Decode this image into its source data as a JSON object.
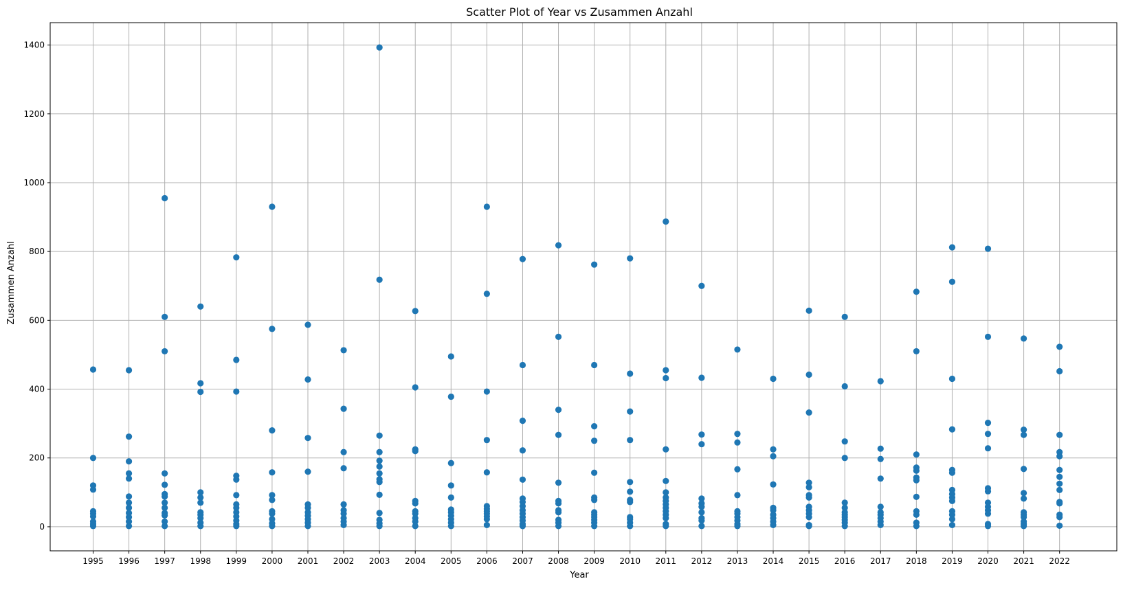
{
  "chart_data": {
    "type": "scatter",
    "title": "Scatter Plot of Year vs Zusammen Anzahl",
    "xlabel": "Year",
    "ylabel": "Zusammen Anzahl",
    "xlim": [
      1993.8,
      2023.6
    ],
    "ylim": [
      -70,
      1465
    ],
    "grid": true,
    "point_color": "#1f77b4",
    "x_ticks": [
      1995,
      1996,
      1997,
      1998,
      1999,
      2000,
      2001,
      2002,
      2003,
      2004,
      2005,
      2006,
      2007,
      2008,
      2009,
      2010,
      2011,
      2012,
      2013,
      2014,
      2015,
      2016,
      2017,
      2018,
      2019,
      2020,
      2021,
      2022
    ],
    "y_ticks": [
      0,
      200,
      400,
      600,
      800,
      1000,
      1200,
      1400
    ],
    "points": [
      {
        "x": 1995,
        "y": 457
      },
      {
        "x": 1995,
        "y": 200
      },
      {
        "x": 1995,
        "y": 120
      },
      {
        "x": 1995,
        "y": 108
      },
      {
        "x": 1995,
        "y": 45
      },
      {
        "x": 1995,
        "y": 38
      },
      {
        "x": 1995,
        "y": 30
      },
      {
        "x": 1995,
        "y": 15
      },
      {
        "x": 1995,
        "y": 8
      },
      {
        "x": 1995,
        "y": 2
      },
      {
        "x": 1996,
        "y": 455
      },
      {
        "x": 1996,
        "y": 262
      },
      {
        "x": 1996,
        "y": 190
      },
      {
        "x": 1996,
        "y": 155
      },
      {
        "x": 1996,
        "y": 140
      },
      {
        "x": 1996,
        "y": 88
      },
      {
        "x": 1996,
        "y": 70
      },
      {
        "x": 1996,
        "y": 55
      },
      {
        "x": 1996,
        "y": 40
      },
      {
        "x": 1996,
        "y": 28
      },
      {
        "x": 1996,
        "y": 15
      },
      {
        "x": 1996,
        "y": 2
      },
      {
        "x": 1997,
        "y": 955
      },
      {
        "x": 1997,
        "y": 610
      },
      {
        "x": 1997,
        "y": 510
      },
      {
        "x": 1997,
        "y": 155
      },
      {
        "x": 1997,
        "y": 122
      },
      {
        "x": 1997,
        "y": 95
      },
      {
        "x": 1997,
        "y": 88
      },
      {
        "x": 1997,
        "y": 70
      },
      {
        "x": 1997,
        "y": 55
      },
      {
        "x": 1997,
        "y": 40
      },
      {
        "x": 1997,
        "y": 33
      },
      {
        "x": 1997,
        "y": 15
      },
      {
        "x": 1997,
        "y": 2
      },
      {
        "x": 1998,
        "y": 640
      },
      {
        "x": 1998,
        "y": 417
      },
      {
        "x": 1998,
        "y": 392
      },
      {
        "x": 1998,
        "y": 100
      },
      {
        "x": 1998,
        "y": 85
      },
      {
        "x": 1998,
        "y": 70
      },
      {
        "x": 1998,
        "y": 42
      },
      {
        "x": 1998,
        "y": 35
      },
      {
        "x": 1998,
        "y": 25
      },
      {
        "x": 1998,
        "y": 12
      },
      {
        "x": 1998,
        "y": 2
      },
      {
        "x": 1999,
        "y": 783
      },
      {
        "x": 1999,
        "y": 485
      },
      {
        "x": 1999,
        "y": 393
      },
      {
        "x": 1999,
        "y": 148
      },
      {
        "x": 1999,
        "y": 137
      },
      {
        "x": 1999,
        "y": 92
      },
      {
        "x": 1999,
        "y": 65
      },
      {
        "x": 1999,
        "y": 55
      },
      {
        "x": 1999,
        "y": 42
      },
      {
        "x": 1999,
        "y": 30
      },
      {
        "x": 1999,
        "y": 18
      },
      {
        "x": 1999,
        "y": 8
      },
      {
        "x": 1999,
        "y": 2
      },
      {
        "x": 2000,
        "y": 930
      },
      {
        "x": 2000,
        "y": 575
      },
      {
        "x": 2000,
        "y": 280
      },
      {
        "x": 2000,
        "y": 158
      },
      {
        "x": 2000,
        "y": 92
      },
      {
        "x": 2000,
        "y": 78
      },
      {
        "x": 2000,
        "y": 45
      },
      {
        "x": 2000,
        "y": 38
      },
      {
        "x": 2000,
        "y": 22
      },
      {
        "x": 2000,
        "y": 10
      },
      {
        "x": 2000,
        "y": 2
      },
      {
        "x": 2001,
        "y": 587
      },
      {
        "x": 2001,
        "y": 428
      },
      {
        "x": 2001,
        "y": 258
      },
      {
        "x": 2001,
        "y": 160
      },
      {
        "x": 2001,
        "y": 65
      },
      {
        "x": 2001,
        "y": 55
      },
      {
        "x": 2001,
        "y": 42
      },
      {
        "x": 2001,
        "y": 32
      },
      {
        "x": 2001,
        "y": 22
      },
      {
        "x": 2001,
        "y": 12
      },
      {
        "x": 2001,
        "y": 2
      },
      {
        "x": 2002,
        "y": 513
      },
      {
        "x": 2002,
        "y": 343
      },
      {
        "x": 2002,
        "y": 217
      },
      {
        "x": 2002,
        "y": 170
      },
      {
        "x": 2002,
        "y": 65
      },
      {
        "x": 2002,
        "y": 48
      },
      {
        "x": 2002,
        "y": 38
      },
      {
        "x": 2002,
        "y": 25
      },
      {
        "x": 2002,
        "y": 15
      },
      {
        "x": 2002,
        "y": 5
      },
      {
        "x": 2003,
        "y": 1393
      },
      {
        "x": 2003,
        "y": 718
      },
      {
        "x": 2003,
        "y": 265
      },
      {
        "x": 2003,
        "y": 217
      },
      {
        "x": 2003,
        "y": 192
      },
      {
        "x": 2003,
        "y": 175
      },
      {
        "x": 2003,
        "y": 155
      },
      {
        "x": 2003,
        "y": 138
      },
      {
        "x": 2003,
        "y": 130
      },
      {
        "x": 2003,
        "y": 93
      },
      {
        "x": 2003,
        "y": 40
      },
      {
        "x": 2003,
        "y": 20
      },
      {
        "x": 2003,
        "y": 10
      },
      {
        "x": 2003,
        "y": 2
      },
      {
        "x": 2004,
        "y": 627
      },
      {
        "x": 2004,
        "y": 405
      },
      {
        "x": 2004,
        "y": 225
      },
      {
        "x": 2004,
        "y": 220
      },
      {
        "x": 2004,
        "y": 75
      },
      {
        "x": 2004,
        "y": 68
      },
      {
        "x": 2004,
        "y": 45
      },
      {
        "x": 2004,
        "y": 38
      },
      {
        "x": 2004,
        "y": 25
      },
      {
        "x": 2004,
        "y": 15
      },
      {
        "x": 2004,
        "y": 2
      },
      {
        "x": 2005,
        "y": 495
      },
      {
        "x": 2005,
        "y": 378
      },
      {
        "x": 2005,
        "y": 185
      },
      {
        "x": 2005,
        "y": 120
      },
      {
        "x": 2005,
        "y": 85
      },
      {
        "x": 2005,
        "y": 50
      },
      {
        "x": 2005,
        "y": 42
      },
      {
        "x": 2005,
        "y": 32
      },
      {
        "x": 2005,
        "y": 22
      },
      {
        "x": 2005,
        "y": 12
      },
      {
        "x": 2005,
        "y": 2
      },
      {
        "x": 2006,
        "y": 930
      },
      {
        "x": 2006,
        "y": 677
      },
      {
        "x": 2006,
        "y": 393
      },
      {
        "x": 2006,
        "y": 252
      },
      {
        "x": 2006,
        "y": 158
      },
      {
        "x": 2006,
        "y": 60
      },
      {
        "x": 2006,
        "y": 52
      },
      {
        "x": 2006,
        "y": 45
      },
      {
        "x": 2006,
        "y": 38
      },
      {
        "x": 2006,
        "y": 30
      },
      {
        "x": 2006,
        "y": 22
      },
      {
        "x": 2006,
        "y": 5
      },
      {
        "x": 2007,
        "y": 778
      },
      {
        "x": 2007,
        "y": 470
      },
      {
        "x": 2007,
        "y": 308
      },
      {
        "x": 2007,
        "y": 222
      },
      {
        "x": 2007,
        "y": 137
      },
      {
        "x": 2007,
        "y": 82
      },
      {
        "x": 2007,
        "y": 72
      },
      {
        "x": 2007,
        "y": 60
      },
      {
        "x": 2007,
        "y": 48
      },
      {
        "x": 2007,
        "y": 38
      },
      {
        "x": 2007,
        "y": 28
      },
      {
        "x": 2007,
        "y": 18
      },
      {
        "x": 2007,
        "y": 8
      },
      {
        "x": 2007,
        "y": 2
      },
      {
        "x": 2008,
        "y": 818
      },
      {
        "x": 2008,
        "y": 552
      },
      {
        "x": 2008,
        "y": 340
      },
      {
        "x": 2008,
        "y": 267
      },
      {
        "x": 2008,
        "y": 128
      },
      {
        "x": 2008,
        "y": 75
      },
      {
        "x": 2008,
        "y": 68
      },
      {
        "x": 2008,
        "y": 48
      },
      {
        "x": 2008,
        "y": 42
      },
      {
        "x": 2008,
        "y": 20
      },
      {
        "x": 2008,
        "y": 12
      },
      {
        "x": 2008,
        "y": 2
      },
      {
        "x": 2009,
        "y": 762
      },
      {
        "x": 2009,
        "y": 470
      },
      {
        "x": 2009,
        "y": 292
      },
      {
        "x": 2009,
        "y": 250
      },
      {
        "x": 2009,
        "y": 157
      },
      {
        "x": 2009,
        "y": 85
      },
      {
        "x": 2009,
        "y": 78
      },
      {
        "x": 2009,
        "y": 42
      },
      {
        "x": 2009,
        "y": 35
      },
      {
        "x": 2009,
        "y": 28
      },
      {
        "x": 2009,
        "y": 20
      },
      {
        "x": 2009,
        "y": 12
      },
      {
        "x": 2009,
        "y": 2
      },
      {
        "x": 2010,
        "y": 780
      },
      {
        "x": 2010,
        "y": 445
      },
      {
        "x": 2010,
        "y": 335
      },
      {
        "x": 2010,
        "y": 252
      },
      {
        "x": 2010,
        "y": 130
      },
      {
        "x": 2010,
        "y": 102
      },
      {
        "x": 2010,
        "y": 78
      },
      {
        "x": 2010,
        "y": 72
      },
      {
        "x": 2010,
        "y": 28
      },
      {
        "x": 2010,
        "y": 22
      },
      {
        "x": 2010,
        "y": 12
      },
      {
        "x": 2010,
        "y": 2
      },
      {
        "x": 2011,
        "y": 887
      },
      {
        "x": 2011,
        "y": 455
      },
      {
        "x": 2011,
        "y": 432
      },
      {
        "x": 2011,
        "y": 225
      },
      {
        "x": 2011,
        "y": 133
      },
      {
        "x": 2011,
        "y": 100
      },
      {
        "x": 2011,
        "y": 85
      },
      {
        "x": 2011,
        "y": 75
      },
      {
        "x": 2011,
        "y": 65
      },
      {
        "x": 2011,
        "y": 55
      },
      {
        "x": 2011,
        "y": 45
      },
      {
        "x": 2011,
        "y": 35
      },
      {
        "x": 2011,
        "y": 25
      },
      {
        "x": 2011,
        "y": 8
      },
      {
        "x": 2011,
        "y": 2
      },
      {
        "x": 2012,
        "y": 700
      },
      {
        "x": 2012,
        "y": 433
      },
      {
        "x": 2012,
        "y": 268
      },
      {
        "x": 2012,
        "y": 240
      },
      {
        "x": 2012,
        "y": 82
      },
      {
        "x": 2012,
        "y": 68
      },
      {
        "x": 2012,
        "y": 58
      },
      {
        "x": 2012,
        "y": 42
      },
      {
        "x": 2012,
        "y": 25
      },
      {
        "x": 2012,
        "y": 18
      },
      {
        "x": 2012,
        "y": 2
      },
      {
        "x": 2013,
        "y": 515
      },
      {
        "x": 2013,
        "y": 270
      },
      {
        "x": 2013,
        "y": 245
      },
      {
        "x": 2013,
        "y": 167
      },
      {
        "x": 2013,
        "y": 92
      },
      {
        "x": 2013,
        "y": 45
      },
      {
        "x": 2013,
        "y": 38
      },
      {
        "x": 2013,
        "y": 28
      },
      {
        "x": 2013,
        "y": 18
      },
      {
        "x": 2013,
        "y": 8
      },
      {
        "x": 2013,
        "y": 2
      },
      {
        "x": 2014,
        "y": 430
      },
      {
        "x": 2014,
        "y": 225
      },
      {
        "x": 2014,
        "y": 205
      },
      {
        "x": 2014,
        "y": 123
      },
      {
        "x": 2014,
        "y": 55
      },
      {
        "x": 2014,
        "y": 48
      },
      {
        "x": 2014,
        "y": 35
      },
      {
        "x": 2014,
        "y": 25
      },
      {
        "x": 2014,
        "y": 15
      },
      {
        "x": 2014,
        "y": 5
      },
      {
        "x": 2015,
        "y": 628
      },
      {
        "x": 2015,
        "y": 442
      },
      {
        "x": 2015,
        "y": 332
      },
      {
        "x": 2015,
        "y": 128
      },
      {
        "x": 2015,
        "y": 115
      },
      {
        "x": 2015,
        "y": 92
      },
      {
        "x": 2015,
        "y": 85
      },
      {
        "x": 2015,
        "y": 58
      },
      {
        "x": 2015,
        "y": 48
      },
      {
        "x": 2015,
        "y": 38
      },
      {
        "x": 2015,
        "y": 28
      },
      {
        "x": 2015,
        "y": 5
      },
      {
        "x": 2015,
        "y": 2
      },
      {
        "x": 2016,
        "y": 610
      },
      {
        "x": 2016,
        "y": 408
      },
      {
        "x": 2016,
        "y": 248
      },
      {
        "x": 2016,
        "y": 200
      },
      {
        "x": 2016,
        "y": 70
      },
      {
        "x": 2016,
        "y": 55
      },
      {
        "x": 2016,
        "y": 42
      },
      {
        "x": 2016,
        "y": 35
      },
      {
        "x": 2016,
        "y": 28
      },
      {
        "x": 2016,
        "y": 20
      },
      {
        "x": 2016,
        "y": 12
      },
      {
        "x": 2016,
        "y": 2
      },
      {
        "x": 2017,
        "y": 423
      },
      {
        "x": 2017,
        "y": 227
      },
      {
        "x": 2017,
        "y": 197
      },
      {
        "x": 2017,
        "y": 140
      },
      {
        "x": 2017,
        "y": 58
      },
      {
        "x": 2017,
        "y": 42
      },
      {
        "x": 2017,
        "y": 35
      },
      {
        "x": 2017,
        "y": 25
      },
      {
        "x": 2017,
        "y": 15
      },
      {
        "x": 2017,
        "y": 5
      },
      {
        "x": 2018,
        "y": 683
      },
      {
        "x": 2018,
        "y": 510
      },
      {
        "x": 2018,
        "y": 210
      },
      {
        "x": 2018,
        "y": 172
      },
      {
        "x": 2018,
        "y": 163
      },
      {
        "x": 2018,
        "y": 143
      },
      {
        "x": 2018,
        "y": 135
      },
      {
        "x": 2018,
        "y": 87
      },
      {
        "x": 2018,
        "y": 45
      },
      {
        "x": 2018,
        "y": 35
      },
      {
        "x": 2018,
        "y": 12
      },
      {
        "x": 2018,
        "y": 2
      },
      {
        "x": 2019,
        "y": 812
      },
      {
        "x": 2019,
        "y": 712
      },
      {
        "x": 2019,
        "y": 430
      },
      {
        "x": 2019,
        "y": 283
      },
      {
        "x": 2019,
        "y": 165
      },
      {
        "x": 2019,
        "y": 157
      },
      {
        "x": 2019,
        "y": 107
      },
      {
        "x": 2019,
        "y": 95
      },
      {
        "x": 2019,
        "y": 85
      },
      {
        "x": 2019,
        "y": 75
      },
      {
        "x": 2019,
        "y": 45
      },
      {
        "x": 2019,
        "y": 35
      },
      {
        "x": 2019,
        "y": 22
      },
      {
        "x": 2019,
        "y": 5
      },
      {
        "x": 2020,
        "y": 808
      },
      {
        "x": 2020,
        "y": 552
      },
      {
        "x": 2020,
        "y": 302
      },
      {
        "x": 2020,
        "y": 270
      },
      {
        "x": 2020,
        "y": 228
      },
      {
        "x": 2020,
        "y": 112
      },
      {
        "x": 2020,
        "y": 103
      },
      {
        "x": 2020,
        "y": 70
      },
      {
        "x": 2020,
        "y": 58
      },
      {
        "x": 2020,
        "y": 48
      },
      {
        "x": 2020,
        "y": 38
      },
      {
        "x": 2020,
        "y": 8
      },
      {
        "x": 2020,
        "y": 2
      },
      {
        "x": 2021,
        "y": 547
      },
      {
        "x": 2021,
        "y": 282
      },
      {
        "x": 2021,
        "y": 267
      },
      {
        "x": 2021,
        "y": 168
      },
      {
        "x": 2021,
        "y": 98
      },
      {
        "x": 2021,
        "y": 82
      },
      {
        "x": 2021,
        "y": 42
      },
      {
        "x": 2021,
        "y": 35
      },
      {
        "x": 2021,
        "y": 28
      },
      {
        "x": 2021,
        "y": 15
      },
      {
        "x": 2021,
        "y": 8
      },
      {
        "x": 2021,
        "y": 2
      },
      {
        "x": 2022,
        "y": 523
      },
      {
        "x": 2022,
        "y": 452
      },
      {
        "x": 2022,
        "y": 267
      },
      {
        "x": 2022,
        "y": 217
      },
      {
        "x": 2022,
        "y": 205
      },
      {
        "x": 2022,
        "y": 165
      },
      {
        "x": 2022,
        "y": 145
      },
      {
        "x": 2022,
        "y": 125
      },
      {
        "x": 2022,
        "y": 107
      },
      {
        "x": 2022,
        "y": 72
      },
      {
        "x": 2022,
        "y": 68
      },
      {
        "x": 2022,
        "y": 35
      },
      {
        "x": 2022,
        "y": 28
      },
      {
        "x": 2022,
        "y": 3
      }
    ]
  }
}
